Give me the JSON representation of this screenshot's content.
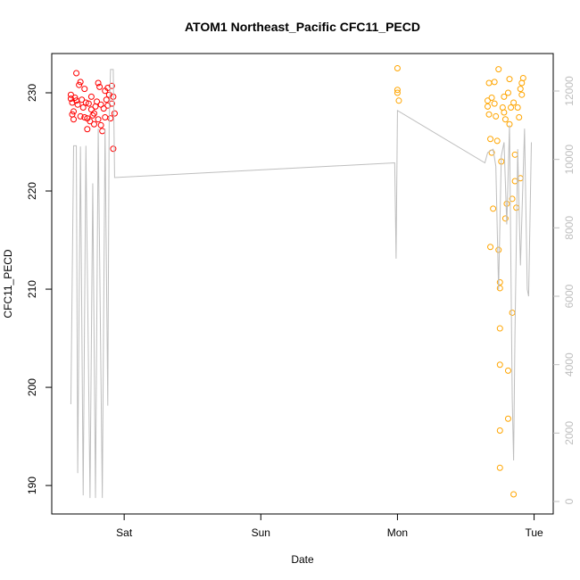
{
  "chart_data": {
    "type": "scatter",
    "title": "ATOM1 Northeast_Pacific CFC11_PECD",
    "xlabel": "Date",
    "ylabel": "CFC11_PECD",
    "xlim": [
      0.47,
      4.14
    ],
    "xticks": [
      {
        "value": 1,
        "label": "Sat"
      },
      {
        "value": 2,
        "label": "Sun"
      },
      {
        "value": 3,
        "label": "Mon"
      },
      {
        "value": 4,
        "label": "Tue"
      }
    ],
    "ylim": [
      187.1,
      234
    ],
    "yticks": [
      190,
      200,
      210,
      220,
      230
    ],
    "y2lim": [
      -365,
      13096
    ],
    "y2ticks": [
      0,
      2000,
      4000,
      6000,
      8000,
      10000,
      12000
    ],
    "series": [
      {
        "color": "#ff0000",
        "x": [
          0.61,
          0.61,
          0.62,
          0.62,
          0.63,
          0.63,
          0.64,
          0.65,
          0.65,
          0.66,
          0.67,
          0.68,
          0.68,
          0.69,
          0.7,
          0.71,
          0.71,
          0.72,
          0.73,
          0.73,
          0.74,
          0.75,
          0.76,
          0.76,
          0.77,
          0.78,
          0.78,
          0.79,
          0.8,
          0.81,
          0.81,
          0.82,
          0.83,
          0.83,
          0.84,
          0.85,
          0.86,
          0.86,
          0.87,
          0.88,
          0.88,
          0.89,
          0.9,
          0.91,
          0.91,
          0.92,
          0.92,
          0.93
        ],
        "values": [
          229.8,
          229.4,
          229,
          227.8,
          227.3,
          228.1,
          229.5,
          232,
          229.2,
          228.8,
          230.8,
          231.1,
          227.6,
          229.3,
          228.5,
          230.4,
          227.5,
          229,
          226.3,
          227.4,
          228.9,
          227.1,
          229.6,
          228.3,
          227.7,
          227.9,
          226.8,
          228.6,
          229.1,
          231,
          227.3,
          230.6,
          228.8,
          226.7,
          226.1,
          228.4,
          230.2,
          227.5,
          229.3,
          230.5,
          228.7,
          229.8,
          227.4,
          228.9,
          230.7,
          224.3,
          229.6,
          227.9
        ]
      },
      {
        "color": "#ffa500",
        "x": [
          3.0,
          3.0,
          3.0,
          3.01,
          3.66,
          3.66,
          3.67,
          3.67,
          3.68,
          3.68,
          3.69,
          3.69,
          3.7,
          3.71,
          3.71,
          3.72,
          3.73,
          3.74,
          3.74,
          3.75,
          3.75,
          3.75,
          3.75,
          3.75,
          3.75,
          3.76,
          3.77,
          3.78,
          3.78,
          3.79,
          3.79,
          3.8,
          3.81,
          3.81,
          3.81,
          3.82,
          3.82,
          3.83,
          3.84,
          3.84,
          3.85,
          3.85,
          3.86,
          3.86,
          3.87,
          3.88,
          3.89,
          3.9,
          3.9,
          3.91,
          3.92,
          3.91
        ],
        "values": [
          232.5,
          230.3,
          230,
          229.2,
          229.2,
          228.6,
          227.8,
          231,
          214.3,
          225.3,
          223.9,
          229.5,
          218.2,
          228.9,
          231.1,
          227.6,
          225.1,
          232.4,
          214,
          210.7,
          210.1,
          206,
          202.3,
          195.6,
          191.8,
          223,
          228.5,
          229.6,
          228,
          217.2,
          227.3,
          218.7,
          201.7,
          196.8,
          230,
          231.4,
          226.8,
          228.5,
          219.2,
          207.6,
          189.1,
          229,
          223.7,
          221,
          218.3,
          228.5,
          227.5,
          221.3,
          230.4,
          231,
          231.5,
          229.8
        ]
      },
      {
        "type": "line",
        "axis": "y2",
        "color": "#bebebe",
        "x": [
          0.61,
          0.63,
          0.65,
          0.66,
          0.68,
          0.7,
          0.72,
          0.75,
          0.77,
          0.79,
          0.81,
          0.84,
          0.86,
          0.88,
          0.89,
          0.9,
          0.92,
          0.93,
          2.98,
          2.99,
          3.0,
          3.64,
          3.66,
          3.7,
          3.72,
          3.74,
          3.76,
          3.78,
          3.8,
          3.82,
          3.84,
          3.85,
          3.86,
          3.88,
          3.9,
          3.93,
          3.95,
          3.96,
          3.98
        ],
        "values": [
          2844,
          10400,
          10400,
          830,
          10380,
          180,
          10400,
          100,
          9300,
          100,
          10900,
          100,
          10900,
          2800,
          11000,
          12630,
          12630,
          9470,
          9900,
          7100,
          11430,
          9900,
          10200,
          10300,
          9800,
          6200,
          10100,
          10500,
          8100,
          11000,
          3000,
          1200,
          4900,
          10300,
          6900,
          10900,
          6200,
          6000,
          10500
        ]
      }
    ]
  }
}
